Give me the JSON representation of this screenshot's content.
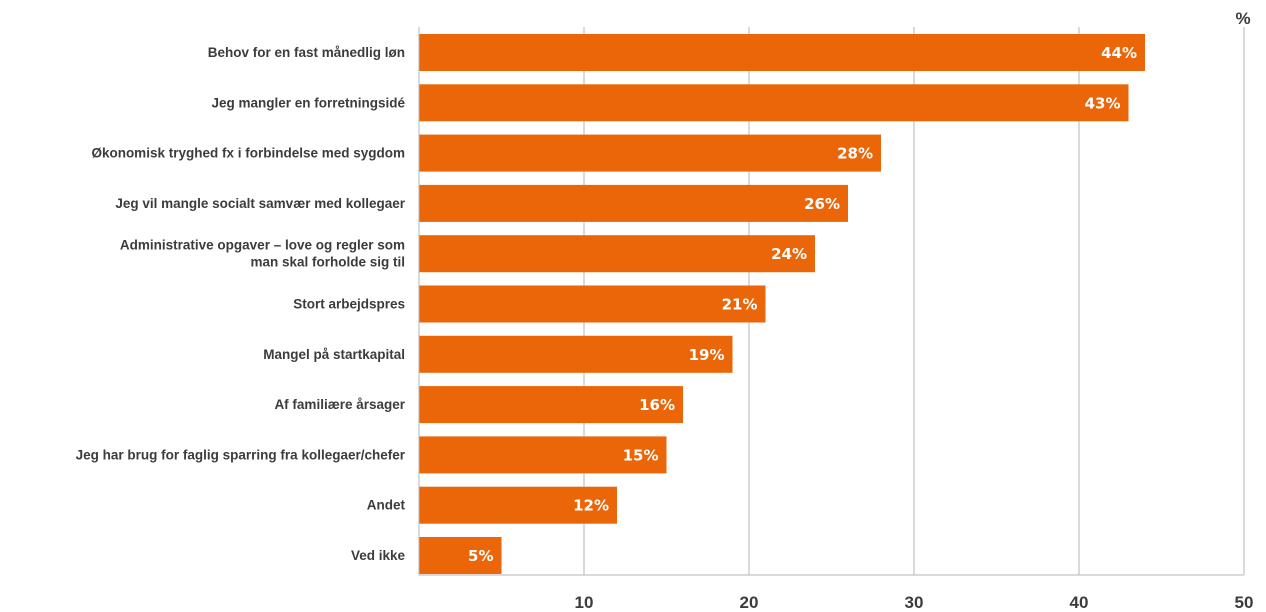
{
  "chart_data": {
    "type": "bar",
    "orientation": "horizontal",
    "unit_label": "%",
    "categories": [
      [
        "Behov for en fast månedlig løn"
      ],
      [
        "Jeg mangler en forretningsidé"
      ],
      [
        "Økonomisk tryghed fx i forbindelse med sygdom"
      ],
      [
        "Jeg vil mangle socialt samvær med kollegaer"
      ],
      [
        "Administrative opgaver – love og regler som",
        "man skal forholde sig til"
      ],
      [
        "Stort arbejdspres"
      ],
      [
        "Mangel på startkapital"
      ],
      [
        "Af familiære årsager"
      ],
      [
        "Jeg har brug for faglig sparring fra kollegaer/chefer"
      ],
      [
        "Andet"
      ],
      [
        "Ved ikke"
      ]
    ],
    "values": [
      44,
      43,
      28,
      26,
      24,
      21,
      19,
      16,
      15,
      12,
      5
    ],
    "data_labels": [
      "44%",
      "43%",
      "28%",
      "26%",
      "24%",
      "21%",
      "19%",
      "16%",
      "15%",
      "12%",
      "5%"
    ],
    "xlim": [
      0,
      50
    ],
    "ticks": [
      10,
      20,
      30,
      40,
      50
    ],
    "tick_labels": [
      "10",
      "20",
      "30",
      "40",
      "50"
    ],
    "grid": "vertical",
    "legend": "none",
    "colors": {
      "bar": "#EA6608",
      "grid": "#b4b4b4",
      "axis": "#b4b4b4",
      "text": "#3c3c3c",
      "data_label": "#ffffff"
    }
  }
}
